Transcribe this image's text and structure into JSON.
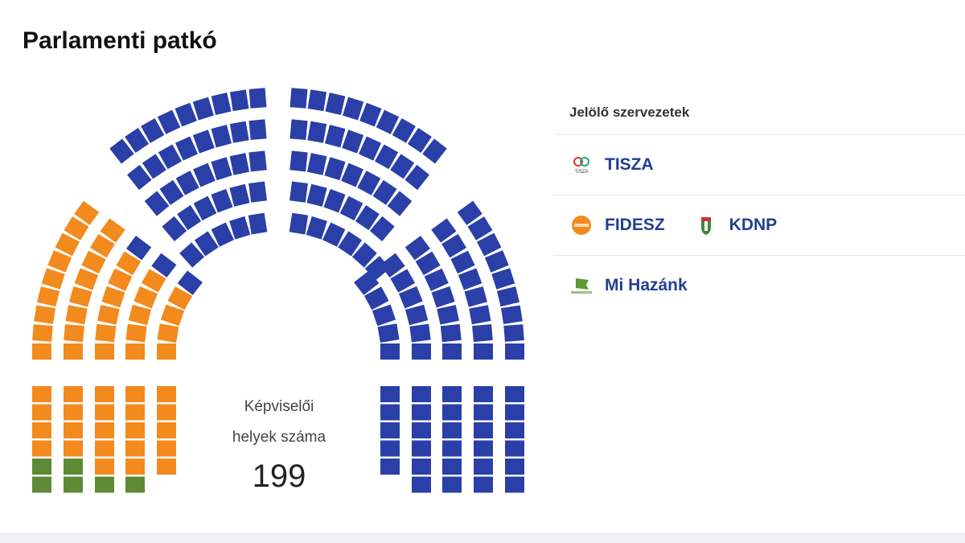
{
  "title": "Parlamenti patkó",
  "center": {
    "line1": "Képviselői",
    "line2": "helyek száma",
    "total": "199"
  },
  "legend": {
    "header": "Jelölő szervezetek",
    "rows": [
      [
        {
          "name": "TISZA",
          "icon": "tisza-logo-icon"
        }
      ],
      [
        {
          "name": "FIDESZ",
          "icon": "fidesz-logo-icon"
        },
        {
          "name": "KDNP",
          "icon": "kdnp-logo-icon"
        }
      ],
      [
        {
          "name": "Mi Hazánk",
          "icon": "mi-hazank-logo-icon"
        }
      ]
    ]
  },
  "chart_data": {
    "type": "parliament",
    "title": "Parlamenti patkó",
    "total_seats": 199,
    "parties": [
      {
        "key": "tisza",
        "seats": 138,
        "color": "#2a3fa8"
      },
      {
        "key": "fidesz",
        "seats": 55,
        "color": "#f28a1e"
      },
      {
        "key": "mihazank",
        "seats": 6,
        "color": "#5f8a35"
      }
    ],
    "layout_rings_outer_to_inner": {
      "left_arc": {
        "counts": [
          9,
          8,
          7,
          6,
          5
        ],
        "tisza_top": [
          0,
          0,
          1,
          1,
          1
        ]
      },
      "top_left": {
        "counts": [
          9,
          8,
          7,
          6,
          5
        ]
      },
      "top_right": {
        "counts": [
          9,
          8,
          7,
          6,
          6
        ]
      },
      "right_arc": {
        "counts": [
          9,
          8,
          7,
          6,
          5
        ]
      },
      "left_columns": {
        "counts": [
          6,
          6,
          6,
          6,
          5
        ],
        "mihazank_bottom": [
          2,
          2,
          1,
          1,
          0
        ]
      },
      "right_columns": {
        "counts": [
          6,
          6,
          6,
          6,
          5
        ]
      }
    }
  }
}
